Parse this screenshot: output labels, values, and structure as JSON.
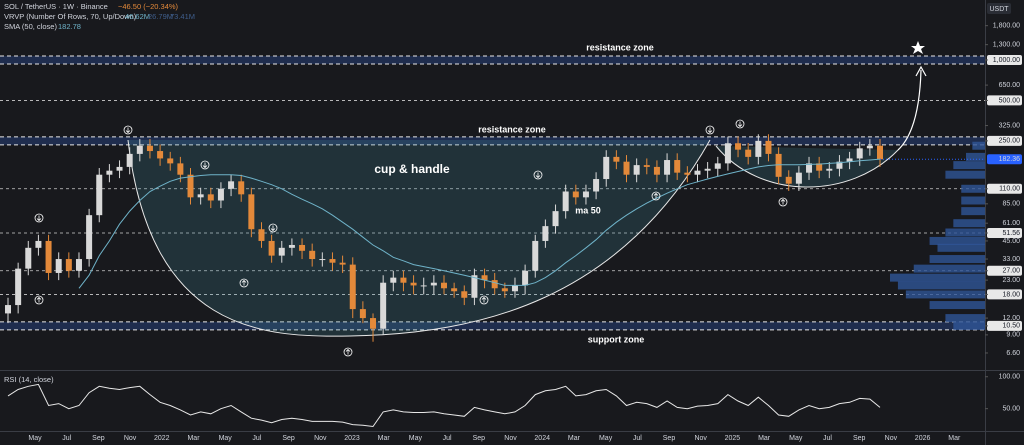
{
  "header": {
    "symbol": "SOL / TetherUS · 1W · Binance",
    "change": "−46.50 (−20.34%)",
    "vrvp": "VRVP (Number Of Rows, 70, Up/Down)",
    "vrvp_values": [
      "46.62M",
      "26.79M",
      "73.41M"
    ]
  },
  "chart_data": [
    {
      "type": "candlestick",
      "currency": "USDT",
      "log_scale": true,
      "up_color": "#d9d9d9",
      "down_color": "#e3893a",
      "x_labels": [
        "May",
        "Jul",
        "Sep",
        "Nov",
        "2022",
        "Mar",
        "May",
        "Jul",
        "Sep",
        "Nov",
        "2023",
        "Mar",
        "May",
        "Jul",
        "Sep",
        "Nov",
        "2024",
        "Mar",
        "May",
        "Jul",
        "Sep",
        "Nov",
        "2025",
        "Mar",
        "May",
        "Jul",
        "Sep",
        "Nov",
        "2026",
        "Mar"
      ],
      "open": [
        13,
        15,
        28,
        40,
        45,
        26,
        33,
        27,
        33,
        70,
        140,
        150,
        160,
        200,
        230,
        210,
        185,
        170,
        140,
        95,
        100,
        90,
        110,
        125,
        100,
        55,
        45,
        35,
        40,
        42,
        38,
        33,
        33,
        31,
        30,
        14,
        12,
        10,
        22,
        24,
        22,
        21,
        21,
        22,
        20,
        19,
        17,
        25,
        23,
        20,
        19,
        21,
        27,
        45,
        58,
        75,
        105,
        95,
        105,
        130,
        190,
        175,
        140,
        165,
        160,
        140,
        180,
        145,
        140,
        150,
        155,
        170,
        240,
        215,
        190,
        250,
        200,
        135,
        120,
        145,
        170,
        150,
        155,
        175,
        185,
        220,
        230
      ],
      "high": [
        17,
        31,
        45,
        50,
        50,
        37,
        37,
        37,
        78,
        157,
        168,
        179,
        224,
        258,
        258,
        235,
        207,
        190,
        157,
        112,
        112,
        123,
        140,
        140,
        112,
        62,
        50,
        45,
        47,
        47,
        43,
        37,
        37,
        35,
        34,
        16,
        13,
        25,
        27,
        27,
        25,
        24,
        25,
        25,
        22,
        21,
        28,
        28,
        26,
        22,
        24,
        30,
        50,
        65,
        84,
        118,
        118,
        118,
        146,
        213,
        213,
        196,
        185,
        185,
        179,
        202,
        202,
        162,
        168,
        174,
        190,
        269,
        269,
        241,
        280,
        280,
        224,
        151,
        162,
        190,
        190,
        174,
        196,
        207,
        246,
        258,
        258
      ],
      "low": [
        11,
        13,
        25,
        35,
        23,
        23,
        24,
        24,
        29,
        62,
        123,
        132,
        141,
        176,
        185,
        163,
        150,
        123,
        84,
        84,
        79,
        79,
        97,
        88,
        48,
        40,
        31,
        31,
        35,
        33,
        29,
        29,
        27,
        26,
        12,
        11,
        8,
        9,
        19,
        19,
        18,
        18,
        18,
        18,
        17,
        15,
        15,
        20,
        18,
        17,
        17,
        18,
        24,
        40,
        51,
        66,
        84,
        84,
        92,
        114,
        154,
        123,
        123,
        141,
        123,
        123,
        128,
        123,
        123,
        132,
        136,
        150,
        189,
        167,
        167,
        176,
        119,
        106,
        106,
        128,
        132,
        132,
        136,
        154,
        163,
        194,
        160
      ],
      "close": [
        15,
        28,
        40,
        45,
        26,
        33,
        27,
        33,
        70,
        140,
        150,
        160,
        200,
        230,
        210,
        185,
        170,
        140,
        95,
        100,
        90,
        110,
        125,
        100,
        55,
        45,
        35,
        40,
        42,
        38,
        33,
        33,
        31,
        30,
        14,
        12,
        10,
        22,
        24,
        22,
        21,
        21,
        22,
        20,
        19,
        17,
        25,
        23,
        20,
        19,
        21,
        27,
        45,
        58,
        75,
        105,
        95,
        105,
        130,
        190,
        175,
        140,
        165,
        160,
        140,
        180,
        145,
        140,
        150,
        155,
        170,
        240,
        215,
        190,
        250,
        200,
        135,
        120,
        145,
        170,
        150,
        155,
        175,
        185,
        220,
        230,
        182.36
      ],
      "series": [
        {
          "name": "SMA (50, close)",
          "color": "#6fb3c9",
          "values": [
            null,
            null,
            null,
            null,
            null,
            null,
            null,
            20,
            25,
            35,
            45,
            60,
            75,
            90,
            105,
            115,
            125,
            132,
            135,
            138,
            140,
            140,
            140,
            138,
            132,
            125,
            118,
            110,
            100,
            92,
            85,
            78,
            70,
            62,
            55,
            48,
            42,
            38,
            34,
            32,
            30,
            29,
            28,
            27,
            26,
            25,
            24,
            23,
            22,
            21,
            21,
            21,
            22,
            24,
            27,
            31,
            35,
            40,
            46,
            54,
            62,
            70,
            78,
            86,
            94,
            102,
            110,
            118,
            124,
            130,
            136,
            142,
            148,
            154,
            160,
            164,
            166,
            166,
            166,
            167,
            168,
            170,
            172,
            175,
            178,
            180,
            182.78
          ]
        }
      ],
      "volume_profile": {
        "color": "#2f5597",
        "prices": [
          10.5,
          12,
          15,
          18,
          21,
          24,
          28,
          33,
          40,
          45,
          52,
          61,
          75,
          90,
          110,
          140,
          165,
          190,
          230
        ],
        "values": [
          20,
          25,
          35,
          50,
          55,
          60,
          45,
          35,
          30,
          35,
          25,
          20,
          15,
          15,
          15,
          25,
          20,
          12,
          8
        ]
      },
      "annotations": [
        "resistance zone",
        "resistance zone",
        "cup & handle",
        "ma 50",
        "support zone"
      ],
      "ylim": [
        4.93,
        2794
      ],
      "yticks": [
        {
          "value": 1800,
          "label": "1,800.00"
        },
        {
          "value": 1300,
          "label": "1,300.00"
        },
        {
          "value": 1000,
          "label": "1,000.00",
          "level": "zone"
        },
        {
          "value": 650,
          "label": "650.00"
        },
        {
          "value": 500,
          "label": "500.00",
          "level": "dashed"
        },
        {
          "value": 325,
          "label": "325.00"
        },
        {
          "value": 250,
          "label": "250.00",
          "level": "zone"
        },
        {
          "value": 110,
          "label": "110.00",
          "level": "dashed"
        },
        {
          "value": 85,
          "label": "85.00"
        },
        {
          "value": 61,
          "label": "61.00"
        },
        {
          "value": 51.56,
          "label": "51.56",
          "level": "dashed"
        },
        {
          "value": 45,
          "label": "45.00"
        },
        {
          "value": 33,
          "label": "33.00"
        },
        {
          "value": 27,
          "label": "27.00",
          "level": "dashed"
        },
        {
          "value": 23,
          "label": "23.00"
        },
        {
          "value": 18,
          "label": "18.00",
          "level": "dashed"
        },
        {
          "value": 12,
          "label": "12.00"
        },
        {
          "value": 10.5,
          "label": "10.50",
          "level": "zone"
        },
        {
          "value": 9,
          "label": "9.00"
        },
        {
          "value": 6.6,
          "label": "6.60"
        }
      ]
    },
    {
      "type": "line",
      "title": "RSI (14, close)",
      "color": "#e8e8e8",
      "values": [
        70,
        80,
        85,
        88,
        55,
        58,
        50,
        55,
        75,
        85,
        82,
        80,
        83,
        85,
        72,
        60,
        55,
        48,
        40,
        45,
        42,
        50,
        55,
        45,
        35,
        32,
        28,
        33,
        35,
        33,
        30,
        30,
        30,
        29,
        25,
        24,
        22,
        45,
        48,
        45,
        44,
        44,
        45,
        42,
        40,
        38,
        52,
        48,
        45,
        42,
        45,
        55,
        72,
        78,
        80,
        85,
        70,
        72,
        78,
        80,
        70,
        55,
        60,
        58,
        52,
        62,
        52,
        50,
        54,
        55,
        58,
        72,
        62,
        55,
        68,
        55,
        40,
        38,
        48,
        55,
        50,
        52,
        58,
        60,
        66,
        65,
        52
      ],
      "ylim": [
        15,
        109
      ],
      "yticks": [
        {
          "value": 100,
          "label": "100.00"
        },
        {
          "value": 50,
          "label": "50.00"
        }
      ]
    }
  ]
}
